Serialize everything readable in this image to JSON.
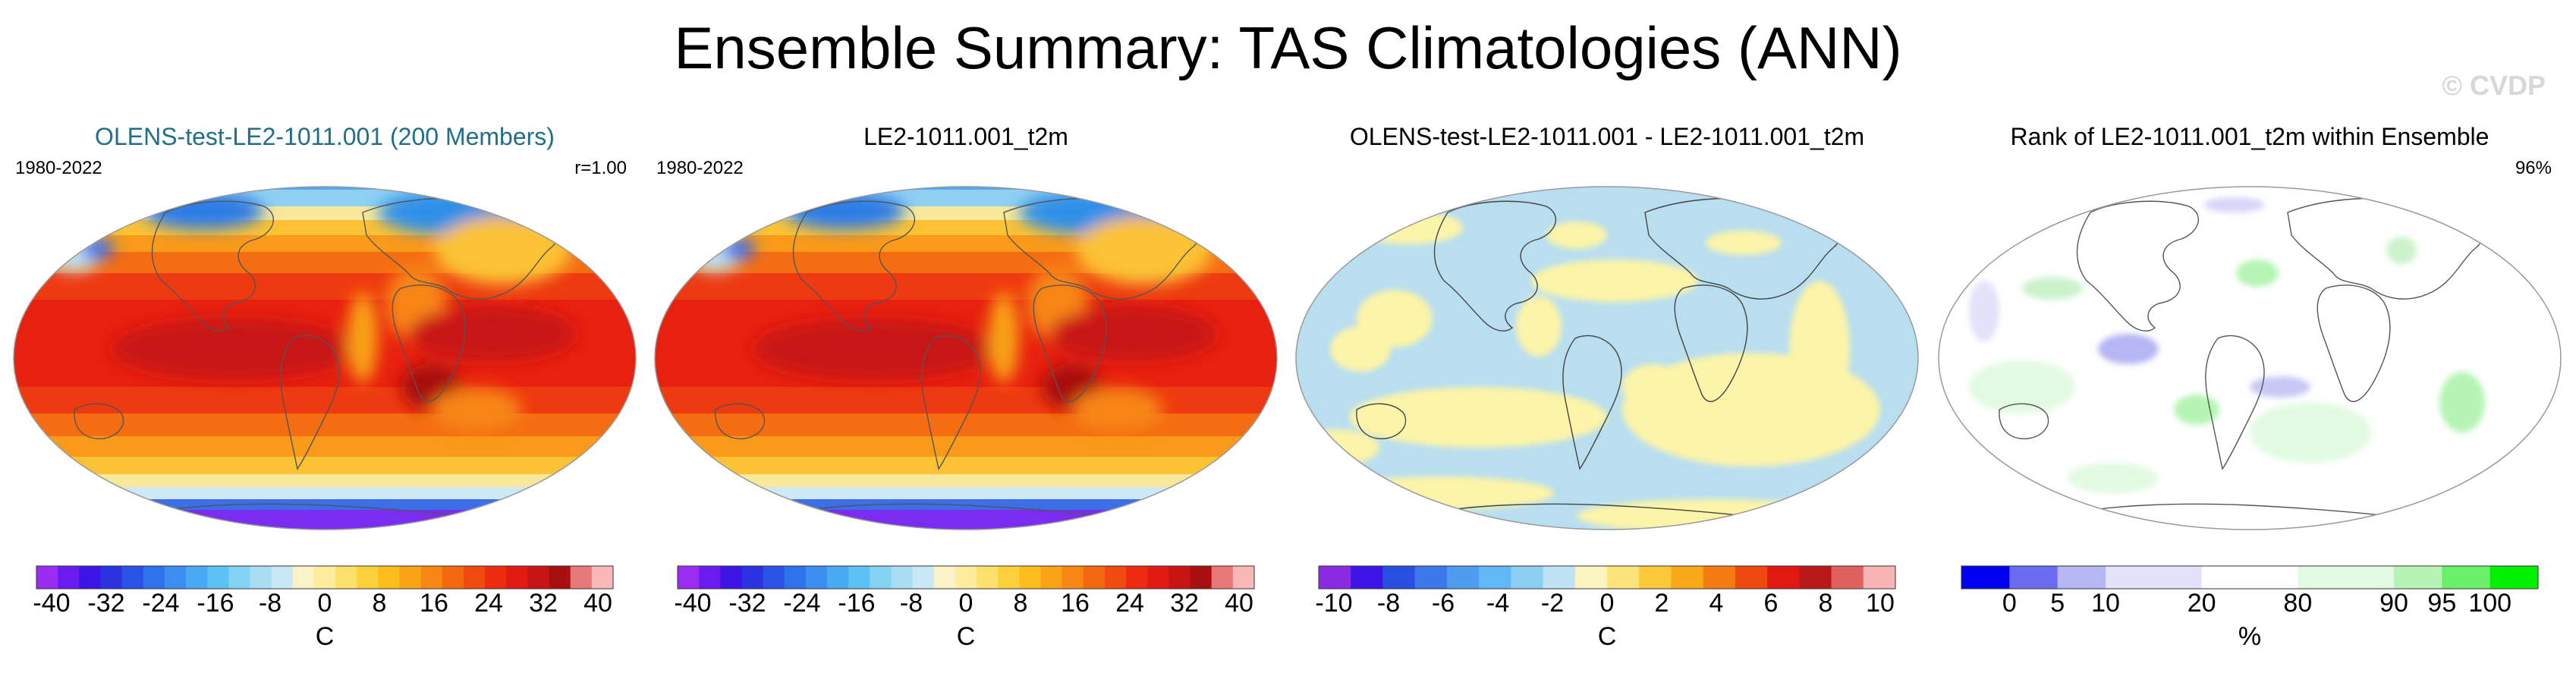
{
  "title": "Ensemble Summary: TAS Climatologies (ANN)",
  "watermark": "© CVDP",
  "panels": [
    {
      "title": "OLENS-test-LE2-1011.001 (200 Members)",
      "left_note": "1980-2022",
      "right_note": "r=1.00",
      "field": "temperature",
      "colorbar": {
        "colors": [
          "#9b2df2",
          "#6a1cf0",
          "#3c14e6",
          "#2b32e0",
          "#2a52e6",
          "#2e72ec",
          "#3c8ef0",
          "#48aaf2",
          "#5cc2f4",
          "#84d2f4",
          "#a8ddf4",
          "#c8e8f6",
          "#fbf2c8",
          "#fdec9c",
          "#fde06a",
          "#fcd03a",
          "#fbbd1c",
          "#f9a316",
          "#f78612",
          "#f46810",
          "#f04a10",
          "#ec2c10",
          "#e21a14",
          "#c81414",
          "#a81010",
          "#e87878",
          "#f9b8b8"
        ],
        "ticks": [
          "-40",
          "-32",
          "-24",
          "-16",
          "-8",
          "0",
          "8",
          "16",
          "24",
          "32",
          "40"
        ],
        "unit": "C"
      }
    },
    {
      "title": "LE2-1011.001_t2m",
      "left_note": "1980-2022",
      "right_note": "",
      "field": "temperature",
      "colorbar": {
        "colors": [
          "#9b2df2",
          "#6a1cf0",
          "#3c14e6",
          "#2b32e0",
          "#2a52e6",
          "#2e72ec",
          "#3c8ef0",
          "#48aaf2",
          "#5cc2f4",
          "#84d2f4",
          "#a8ddf4",
          "#c8e8f6",
          "#fbf2c8",
          "#fdec9c",
          "#fde06a",
          "#fcd03a",
          "#fbbd1c",
          "#f9a316",
          "#f78612",
          "#f46810",
          "#f04a10",
          "#ec2c10",
          "#e21a14",
          "#c81414",
          "#a81010",
          "#e87878",
          "#f9b8b8"
        ],
        "ticks": [
          "-40",
          "-32",
          "-24",
          "-16",
          "-8",
          "0",
          "8",
          "16",
          "24",
          "32",
          "40"
        ],
        "unit": "C"
      }
    },
    {
      "title": "OLENS-test-LE2-1011.001 - LE2-1011.001_t2m",
      "left_note": "",
      "right_note": "",
      "field": "difference",
      "colorbar": {
        "colors": [
          "#8a2be2",
          "#3c14e6",
          "#2850e0",
          "#3c78ec",
          "#4e9cf0",
          "#62b8f4",
          "#8ccef4",
          "#bfe2f4",
          "#fbf4c0",
          "#fde47a",
          "#fcc83a",
          "#f9a818",
          "#f47a12",
          "#ee4a10",
          "#e01a10",
          "#b81818",
          "#e06060",
          "#f8b4b4"
        ],
        "ticks": [
          "-10",
          "-8",
          "-6",
          "-4",
          "-2",
          "0",
          "2",
          "4",
          "6",
          "8",
          "10"
        ],
        "unit": "C"
      }
    },
    {
      "title": "Rank of LE2-1011.001_t2m within Ensemble",
      "left_note": "",
      "right_note": "96%",
      "field": "rank",
      "colorbar": {
        "colors": [
          "#0000f0",
          "#6b6bf0",
          "#b6b6f4",
          "#e2e2fa",
          "#ffffff",
          "#e2fae2",
          "#b6f4b6",
          "#6bf06b",
          "#00f000"
        ],
        "ticks": [
          "0",
          "5",
          "10",
          "20",
          "80",
          "90",
          "95",
          "100"
        ],
        "unit": "%"
      }
    }
  ],
  "chart_data": [
    {
      "type": "heatmap",
      "title": "OLENS-test-LE2-1011.001 (200 Members)",
      "period": "1980-2022",
      "pattern_correlation": "r=1.00",
      "variable": "TAS annual climatology",
      "units": "C",
      "color_range": [
        -40,
        40
      ],
      "zonal_mean_by_latitude": {
        "lat": [
          80,
          60,
          40,
          20,
          0,
          -20,
          -40,
          -60,
          -75
        ],
        "values": [
          -22,
          -5,
          10,
          24,
          27,
          24,
          12,
          0,
          -38
        ]
      }
    },
    {
      "type": "heatmap",
      "title": "LE2-1011.001_t2m",
      "period": "1980-2022",
      "variable": "TAS annual climatology",
      "units": "C",
      "color_range": [
        -40,
        40
      ],
      "zonal_mean_by_latitude": {
        "lat": [
          80,
          60,
          40,
          20,
          0,
          -20,
          -40,
          -60,
          -75
        ],
        "values": [
          -22,
          -5,
          10,
          24,
          27,
          24,
          12,
          0,
          -38
        ]
      }
    },
    {
      "type": "heatmap",
      "title": "OLENS-test-LE2-1011.001 - LE2-1011.001_t2m",
      "variable": "TAS difference",
      "units": "C",
      "color_range": [
        -10,
        10
      ],
      "note": "differences mostly between -2 and 2 C"
    },
    {
      "type": "heatmap",
      "title": "Rank of LE2-1011.001_t2m within Ensemble",
      "variable": "rank percentile",
      "units": "%",
      "levels": [
        0,
        5,
        10,
        20,
        80,
        90,
        95,
        100
      ],
      "area_within_range": "96%"
    }
  ]
}
